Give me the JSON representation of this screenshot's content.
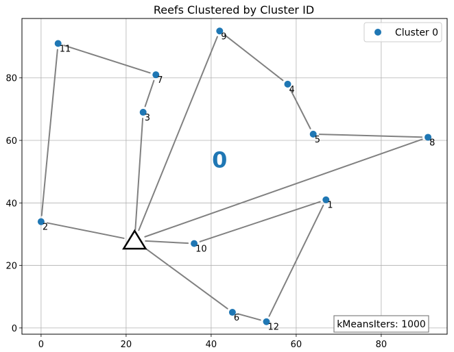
{
  "chart_data": {
    "type": "scatter",
    "title": "Reefs Clustered by Cluster ID",
    "xlabel": "",
    "ylabel": "",
    "xlim": [
      -4.5,
      95.5
    ],
    "ylim": [
      -2,
      99
    ],
    "xticks": [
      0,
      20,
      40,
      60,
      80
    ],
    "yticks": [
      0,
      20,
      40,
      60,
      80
    ],
    "grid": true,
    "legend": {
      "position": "top-right",
      "entries": [
        {
          "label": "Cluster 0",
          "color": "#1f77b4",
          "marker": "circle"
        }
      ]
    },
    "series": [
      {
        "name": "Cluster 0",
        "color": "#1f77b4",
        "points": [
          {
            "id": "1",
            "x": 67,
            "y": 41
          },
          {
            "id": "2",
            "x": 0,
            "y": 34
          },
          {
            "id": "3",
            "x": 24,
            "y": 69
          },
          {
            "id": "4",
            "x": 58,
            "y": 78
          },
          {
            "id": "5",
            "x": 64,
            "y": 62
          },
          {
            "id": "6",
            "x": 45,
            "y": 5
          },
          {
            "id": "7",
            "x": 27,
            "y": 81
          },
          {
            "id": "8",
            "x": 91,
            "y": 61
          },
          {
            "id": "9",
            "x": 42,
            "y": 95
          },
          {
            "id": "10",
            "x": 36,
            "y": 27
          },
          {
            "id": "11",
            "x": 4,
            "y": 91
          },
          {
            "id": "12",
            "x": 53,
            "y": 2
          }
        ]
      }
    ],
    "depot": {
      "x": 22,
      "y": 28,
      "marker": "triangle"
    },
    "routes": [
      [
        "depot",
        "2",
        "11",
        "7",
        "3",
        "depot"
      ],
      [
        "depot",
        "9",
        "4",
        "5",
        "8",
        "depot"
      ],
      [
        "depot",
        "10",
        "1",
        "12",
        "6",
        "depot"
      ]
    ],
    "cluster_labels": [
      {
        "text": "0",
        "x": 42,
        "y": 54,
        "color": "#1f77b4"
      }
    ],
    "annotation_box": {
      "text": "kMeansIters: 1000",
      "position": "bottom-right"
    },
    "line_color": "#808080"
  }
}
